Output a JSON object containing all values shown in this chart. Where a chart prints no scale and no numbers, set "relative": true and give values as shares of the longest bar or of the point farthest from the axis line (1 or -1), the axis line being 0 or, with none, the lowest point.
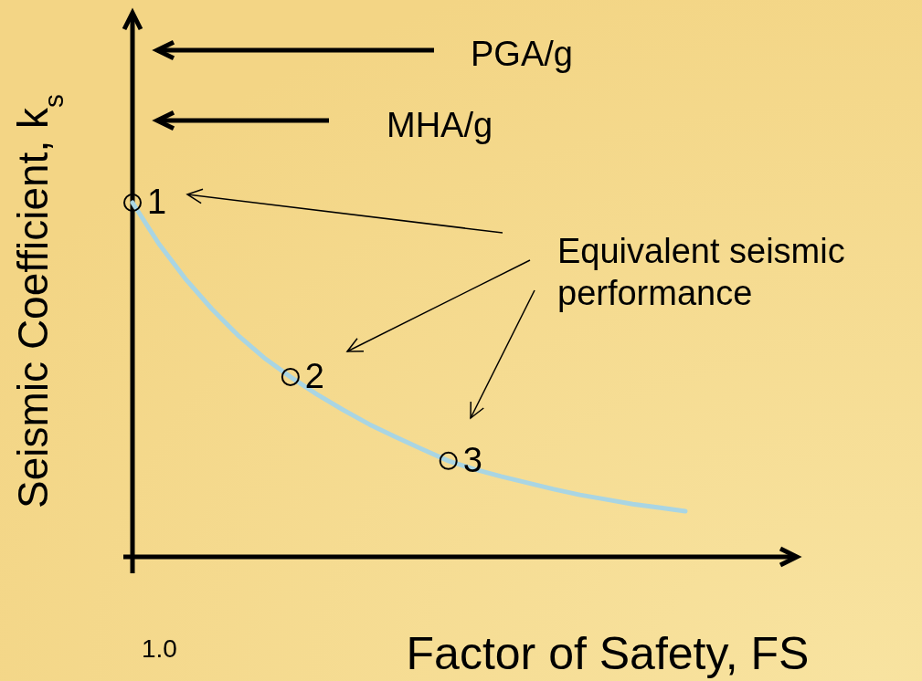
{
  "chart_data": {
    "type": "line",
    "relative": true,
    "xlabel": "Factor of Safety, FS",
    "ylabel": "Seismic Coefficient, k$_{s}$",
    "categories": [
      null,
      null,
      null,
      null,
      null,
      null,
      null,
      null,
      null,
      null,
      null,
      null,
      null,
      null,
      null,
      null,
      null,
      null,
      null,
      null,
      null,
      null
    ],
    "series": [
      {
        "color": "#a9d5e3",
        "values": [
          1,
          0.884,
          0.786,
          0.701,
          0.626,
          0.562,
          0.508,
          0.459,
          0.415,
          0.374,
          0.338,
          0.304,
          0.271,
          0.247,
          0.227,
          0.209,
          0.191,
          0.175,
          0.162,
          0.149,
          0.139,
          0.129
        ]
      }
    ],
    "annotations": [
      "PGA/g",
      "MHA/g",
      "Equivalent seismic performance",
      "1.0",
      "1",
      "2",
      "3"
    ]
  }
}
